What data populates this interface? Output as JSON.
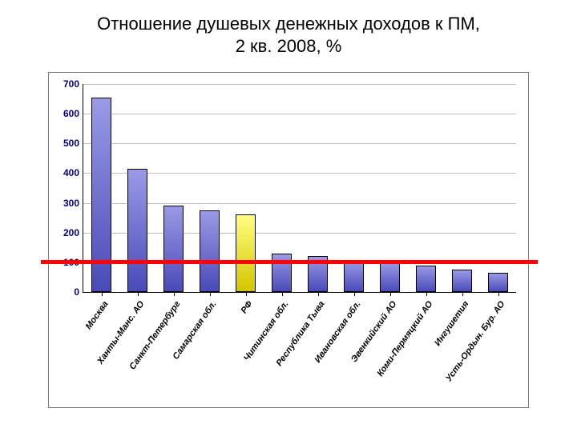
{
  "chart": {
    "title_line1": "Отношение душевых денежных доходов к ПМ,",
    "title_line2": "2 кв. 2008, %",
    "title_fontsize": 22,
    "title_color": "#000000",
    "frame_border_color": "#7b7b7b",
    "background_color": "#ffffff",
    "type": "bar",
    "ylim": [
      0,
      700
    ],
    "ytick_step": 100,
    "yticks": [
      0,
      100,
      200,
      300,
      400,
      500,
      600,
      700
    ],
    "ylabel_color": "#000080",
    "ylabel_fontsize": 12,
    "ylabel_fontweight": "bold",
    "grid_color": "#bfbfbf",
    "axis_color": "#000000",
    "bar_width_ratio": 0.55,
    "bar_border_color": "#000000",
    "bar_gradient_top": "#9a9ae6",
    "bar_gradient_bottom": "#4a4ab8",
    "highlight_gradient_top": "#ffff80",
    "highlight_gradient_bottom": "#d4c400",
    "reference_line": {
      "value": 100,
      "color": "#ff0000",
      "width": 5
    },
    "xlabel_fontsize": 11,
    "xlabel_fontweight": "bold",
    "xlabel_fontstyle": "italic",
    "xlabel_rotation_deg": -55,
    "categories": [
      "Москва",
      "Ханты-Манс. АО",
      "Санкт-Петербург",
      "Самарская обл.",
      "РФ",
      "Читинская обл.",
      "Республика Тыва",
      "Ивановская обл.",
      "Эвенкийский АО",
      "Коми-Пермяцкий АО",
      "Ингушетия",
      "Усть-Ордын. Бур. АО"
    ],
    "values": [
      655,
      415,
      290,
      275,
      260,
      130,
      120,
      105,
      100,
      90,
      75,
      65
    ],
    "highlight_index": 4
  }
}
